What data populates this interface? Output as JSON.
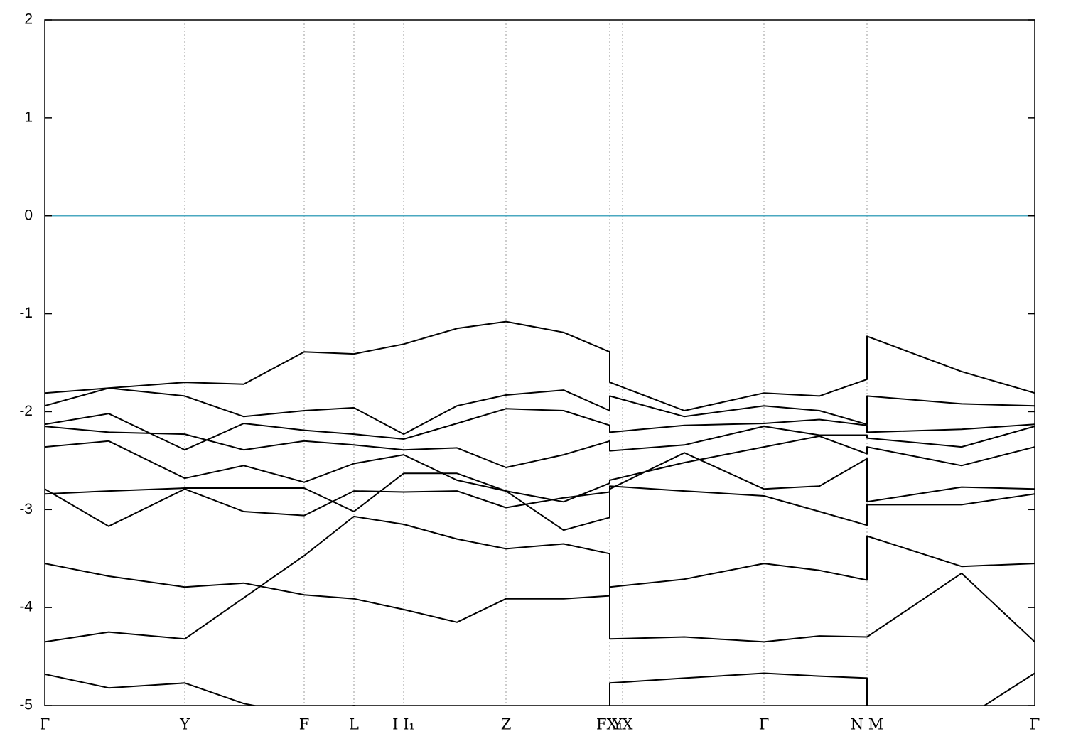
{
  "chart_data": {
    "type": "line",
    "xlim": [
      0,
      13.93
    ],
    "xticks": [
      {
        "value": 0,
        "label": "Γ"
      },
      {
        "value": 1.97,
        "label": "Y"
      },
      {
        "value": 3.65,
        "label": "F"
      },
      {
        "value": 4.35,
        "label": "L"
      },
      {
        "value": 5.05,
        "label": "I  I₁"
      },
      {
        "value": 6.49,
        "label": "Z"
      },
      {
        "value": 7.95,
        "label": "FX₁"
      },
      {
        "value": 8.13,
        "label": "YX"
      },
      {
        "value": 10.12,
        "label": "Γ"
      },
      {
        "value": 11.57,
        "label": "N M"
      },
      {
        "value": 13.93,
        "label": "Γ"
      }
    ],
    "ylim": [
      -5,
      2
    ],
    "yticks": [
      2,
      1,
      0,
      -1,
      -2,
      -3,
      -4,
      -5
    ],
    "grid": true,
    "reference_line": {
      "value": 0,
      "color": "#4aa8c0"
    },
    "x": [
      0,
      0.9,
      1.97,
      2.8,
      3.65,
      4.35,
      5.05,
      5.8,
      6.49,
      7.3,
      7.95,
      7.95,
      9.0,
      10.12,
      10.9,
      11.57,
      11.57,
      12.9,
      13.93
    ],
    "series": [
      {
        "color": "#000000",
        "values": [
          -1.81,
          -1.76,
          -1.7,
          -1.72,
          -1.39,
          -1.41,
          -1.31,
          -1.15,
          -1.08,
          -1.19,
          -1.39,
          -1.7,
          -1.99,
          -1.81,
          -1.84,
          -1.67,
          -1.23,
          -1.59,
          -1.81
        ]
      },
      {
        "color": "#000000",
        "values": [
          -1.94,
          -1.76,
          -1.84,
          -2.05,
          -1.99,
          -1.96,
          -2.23,
          -1.94,
          -1.83,
          -1.78,
          -1.99,
          -1.84,
          -2.05,
          -1.94,
          -1.99,
          -2.13,
          -1.84,
          -1.92,
          -1.94
        ]
      },
      {
        "color": "#000000",
        "values": [
          -2.13,
          -2.02,
          -2.39,
          -2.12,
          -2.19,
          -2.23,
          -2.28,
          -2.12,
          -1.97,
          -1.99,
          -2.14,
          -2.21,
          -2.14,
          -2.12,
          -2.08,
          -2.14,
          -2.21,
          -2.18,
          -2.13
        ]
      },
      {
        "color": "#000000",
        "values": [
          -2.15,
          -2.21,
          -2.23,
          -2.39,
          -2.3,
          -2.34,
          -2.39,
          -2.37,
          -2.57,
          -2.44,
          -2.3,
          -2.4,
          -2.34,
          -2.15,
          -2.24,
          -2.24,
          -2.27,
          -2.36,
          -2.15
        ]
      },
      {
        "color": "#000000",
        "values": [
          -2.36,
          -2.3,
          -2.68,
          -2.55,
          -2.72,
          -2.53,
          -2.44,
          -2.7,
          -2.81,
          -2.92,
          -2.73,
          -2.7,
          -2.52,
          -2.36,
          -2.25,
          -2.43,
          -2.36,
          -2.55,
          -2.36
        ]
      },
      {
        "color": "#000000",
        "values": [
          -2.84,
          -2.81,
          -2.78,
          -2.78,
          -2.78,
          -3.02,
          -2.63,
          -2.63,
          -2.81,
          -3.21,
          -3.08,
          -2.79,
          -2.42,
          -2.79,
          -2.76,
          -2.48,
          -2.92,
          -2.77,
          -2.79
        ]
      },
      {
        "color": "#000000",
        "values": [
          -2.79,
          -3.17,
          -2.79,
          -3.02,
          -3.06,
          -2.81,
          -2.82,
          -2.81,
          -2.98,
          -2.88,
          -2.82,
          -2.76,
          -2.81,
          -2.86,
          -3.02,
          -3.16,
          -2.95,
          -2.95,
          -2.84
        ]
      },
      {
        "color": "#000000",
        "values": [
          -3.55,
          -3.68,
          -3.79,
          -3.75,
          -3.87,
          -3.91,
          -4.02,
          -4.15,
          -3.91,
          -3.91,
          -3.88,
          -3.79,
          -3.71,
          -3.55,
          -3.62,
          -3.72,
          -3.27,
          -3.58,
          -3.55
        ]
      },
      {
        "color": "#000000",
        "values": [
          -4.35,
          -4.25,
          -4.32,
          -3.9,
          -3.47,
          -3.07,
          -3.15,
          -3.3,
          -3.4,
          -3.35,
          -3.45,
          -4.32,
          -4.3,
          -4.35,
          -4.29,
          -4.3,
          -4.3,
          -3.65,
          -4.35
        ]
      },
      {
        "color": "#000000",
        "values": [
          -4.68,
          -4.82,
          -4.77,
          -4.98,
          -5.1,
          -5.0,
          -5.1,
          -5.2,
          -5.2,
          -5.2,
          -5.2,
          -4.77,
          -4.72,
          -4.67,
          -4.7,
          -4.72,
          -5.3,
          -5.15,
          -4.67
        ]
      }
    ]
  }
}
